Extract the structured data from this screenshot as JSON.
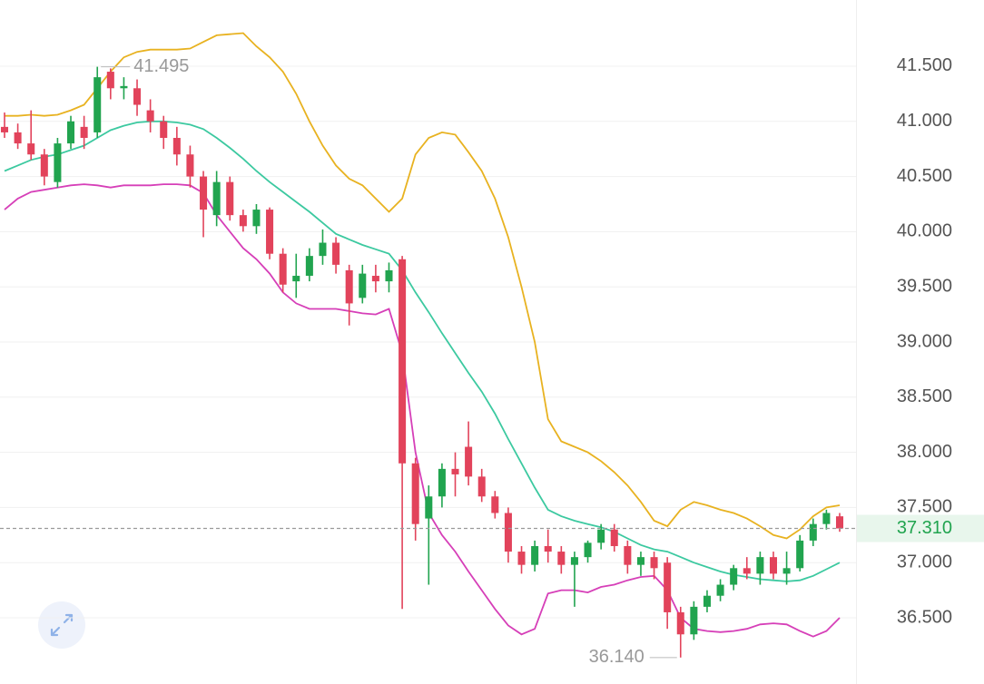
{
  "chart_data": {
    "type": "candlestick",
    "categories": [
      null,
      null,
      null,
      null,
      null,
      null,
      null,
      null,
      null,
      null,
      null,
      null,
      null,
      null,
      null,
      null,
      null,
      null,
      null,
      null,
      null,
      null,
      null,
      null,
      null,
      null,
      null,
      null,
      null,
      null,
      null,
      null,
      null,
      null,
      null,
      null,
      null,
      null,
      null,
      null,
      null,
      null,
      null,
      null,
      null,
      null,
      null,
      null,
      null,
      null,
      null,
      null,
      null,
      null,
      null,
      null,
      null,
      null,
      null,
      null,
      null,
      null,
      null,
      null
    ],
    "open": [
      40.95,
      40.9,
      40.8,
      40.7,
      40.45,
      40.8,
      40.95,
      40.9,
      41.45,
      41.3,
      41.3,
      41.1,
      41.0,
      40.85,
      40.7,
      40.5,
      40.15,
      40.45,
      40.15,
      40.05,
      40.2,
      39.8,
      39.55,
      39.6,
      39.78,
      39.9,
      39.65,
      39.4,
      39.6,
      39.55,
      39.75,
      37.9,
      37.4,
      37.6,
      37.85,
      38.05,
      37.78,
      37.6,
      37.45,
      37.1,
      36.98,
      37.15,
      37.1,
      36.98,
      37.05,
      37.18,
      37.3,
      37.15,
      36.98,
      37.05,
      37.0,
      36.55,
      36.35,
      36.6,
      36.7,
      36.8,
      36.95,
      36.9,
      37.05,
      36.9,
      36.95,
      37.2,
      37.35,
      37.42
    ],
    "high": [
      41.08,
      40.98,
      41.1,
      40.75,
      40.85,
      41.05,
      41.05,
      41.495,
      41.48,
      41.4,
      41.38,
      41.2,
      41.05,
      40.95,
      40.78,
      40.55,
      40.55,
      40.5,
      40.2,
      40.25,
      40.22,
      39.85,
      39.8,
      39.85,
      40.02,
      39.95,
      39.7,
      39.7,
      39.7,
      39.72,
      39.78,
      37.95,
      37.7,
      37.9,
      38.0,
      38.28,
      37.85,
      37.65,
      37.5,
      37.15,
      37.2,
      37.3,
      37.15,
      37.1,
      37.2,
      37.35,
      37.35,
      37.2,
      37.1,
      37.1,
      37.05,
      36.6,
      36.65,
      36.75,
      36.85,
      36.98,
      37.05,
      37.1,
      37.1,
      37.1,
      37.25,
      37.4,
      37.48,
      37.45
    ],
    "low": [
      40.85,
      40.75,
      40.65,
      40.42,
      40.4,
      40.75,
      40.75,
      40.85,
      41.2,
      41.2,
      41.05,
      40.9,
      40.75,
      40.6,
      40.4,
      39.95,
      40.05,
      40.1,
      40.0,
      39.98,
      39.75,
      39.45,
      39.4,
      39.55,
      39.7,
      39.62,
      39.15,
      39.35,
      39.45,
      39.45,
      36.58,
      37.2,
      36.8,
      37.5,
      37.6,
      37.7,
      37.55,
      37.4,
      37.0,
      36.9,
      36.92,
      37.0,
      36.9,
      36.6,
      37.0,
      37.12,
      37.1,
      36.9,
      36.88,
      36.85,
      36.4,
      36.14,
      36.3,
      36.55,
      36.65,
      36.75,
      36.85,
      36.8,
      36.85,
      36.8,
      36.92,
      37.15,
      37.3,
      37.28
    ],
    "close": [
      40.9,
      40.8,
      40.7,
      40.5,
      40.8,
      41.0,
      40.85,
      41.4,
      41.3,
      41.32,
      41.15,
      41.0,
      40.85,
      40.7,
      40.5,
      40.2,
      40.45,
      40.15,
      40.05,
      40.2,
      39.8,
      39.52,
      39.6,
      39.78,
      39.9,
      39.7,
      39.35,
      39.62,
      39.55,
      39.65,
      37.9,
      37.35,
      37.6,
      37.85,
      37.8,
      37.78,
      37.6,
      37.45,
      37.1,
      36.98,
      37.15,
      37.1,
      36.98,
      37.05,
      37.18,
      37.3,
      37.15,
      36.98,
      37.05,
      36.95,
      36.55,
      36.35,
      36.6,
      36.7,
      36.8,
      36.95,
      36.9,
      37.05,
      36.9,
      36.95,
      37.2,
      37.35,
      37.45,
      37.31
    ],
    "up_color": "#21a44f",
    "down_color": "#e2435b",
    "series": [
      {
        "color": "#e8b220",
        "values": [
          41.05,
          41.05,
          41.06,
          41.05,
          41.06,
          41.1,
          41.15,
          41.3,
          41.45,
          41.58,
          41.63,
          41.65,
          41.65,
          41.65,
          41.66,
          41.72,
          41.78,
          41.79,
          41.8,
          41.68,
          41.58,
          41.45,
          41.25,
          41.0,
          40.78,
          40.6,
          40.48,
          40.42,
          40.3,
          40.18,
          40.3,
          40.7,
          40.85,
          40.9,
          40.88,
          40.72,
          40.55,
          40.3,
          39.95,
          39.5,
          39.0,
          38.3,
          38.1,
          38.05,
          38.0,
          37.92,
          37.82,
          37.7,
          37.55,
          37.38,
          37.33,
          37.48,
          37.55,
          37.52,
          37.48,
          37.45,
          37.4,
          37.33,
          37.25,
          37.22,
          37.3,
          37.42,
          37.5,
          37.52
        ]
      },
      {
        "color": "#3cc9a0",
        "values": [
          40.55,
          40.6,
          40.65,
          40.68,
          40.7,
          40.74,
          40.78,
          40.85,
          40.92,
          40.96,
          40.99,
          41.0,
          41.0,
          40.99,
          40.97,
          40.93,
          40.85,
          40.76,
          40.66,
          40.55,
          40.45,
          40.36,
          40.27,
          40.18,
          40.08,
          39.98,
          39.93,
          39.88,
          39.84,
          39.8,
          39.65,
          39.45,
          39.27,
          39.08,
          38.9,
          38.72,
          38.55,
          38.35,
          38.12,
          37.9,
          37.68,
          37.48,
          37.42,
          37.38,
          37.35,
          37.32,
          37.28,
          37.22,
          37.16,
          37.12,
          37.1,
          37.05,
          37.0,
          36.96,
          36.92,
          36.89,
          36.87,
          36.85,
          36.84,
          36.83,
          36.84,
          36.88,
          36.94,
          37.0
        ]
      },
      {
        "color": "#d63fb8",
        "values": [
          40.2,
          40.3,
          40.36,
          40.38,
          40.4,
          40.42,
          40.43,
          40.42,
          40.4,
          40.42,
          40.42,
          40.42,
          40.43,
          40.43,
          40.42,
          40.35,
          40.15,
          40.0,
          39.85,
          39.75,
          39.62,
          39.45,
          39.35,
          39.3,
          39.3,
          39.3,
          39.28,
          39.26,
          39.25,
          39.3,
          38.9,
          38.0,
          37.45,
          37.25,
          37.1,
          36.92,
          36.75,
          36.58,
          36.43,
          36.35,
          36.4,
          36.72,
          36.75,
          36.75,
          36.73,
          36.78,
          36.8,
          36.84,
          36.87,
          36.88,
          36.75,
          36.5,
          36.4,
          36.38,
          36.37,
          36.38,
          36.4,
          36.44,
          36.45,
          36.44,
          36.38,
          36.33,
          36.38,
          36.5
        ]
      }
    ],
    "ylim": [
      35.9,
      42.1
    ],
    "yticks": [
      {
        "value": 41.5,
        "label": "41.500"
      },
      {
        "value": 41.0,
        "label": "41.000"
      },
      {
        "value": 40.5,
        "label": "40.500"
      },
      {
        "value": 40.0,
        "label": "40.000"
      },
      {
        "value": 39.5,
        "label": "39.500"
      },
      {
        "value": 39.0,
        "label": "39.000"
      },
      {
        "value": 38.5,
        "label": "38.500"
      },
      {
        "value": 38.0,
        "label": "38.000"
      },
      {
        "value": 37.5,
        "label": "37.500"
      },
      {
        "value": 37.0,
        "label": "37.000"
      },
      {
        "value": 36.5,
        "label": "36.500"
      }
    ],
    "grid": true,
    "high_mark": {
      "value": 41.495,
      "label": "41.495"
    },
    "low_mark": {
      "value": 36.14,
      "label": "36.140"
    },
    "last_price": {
      "value": 37.31,
      "label": "37.310"
    }
  }
}
